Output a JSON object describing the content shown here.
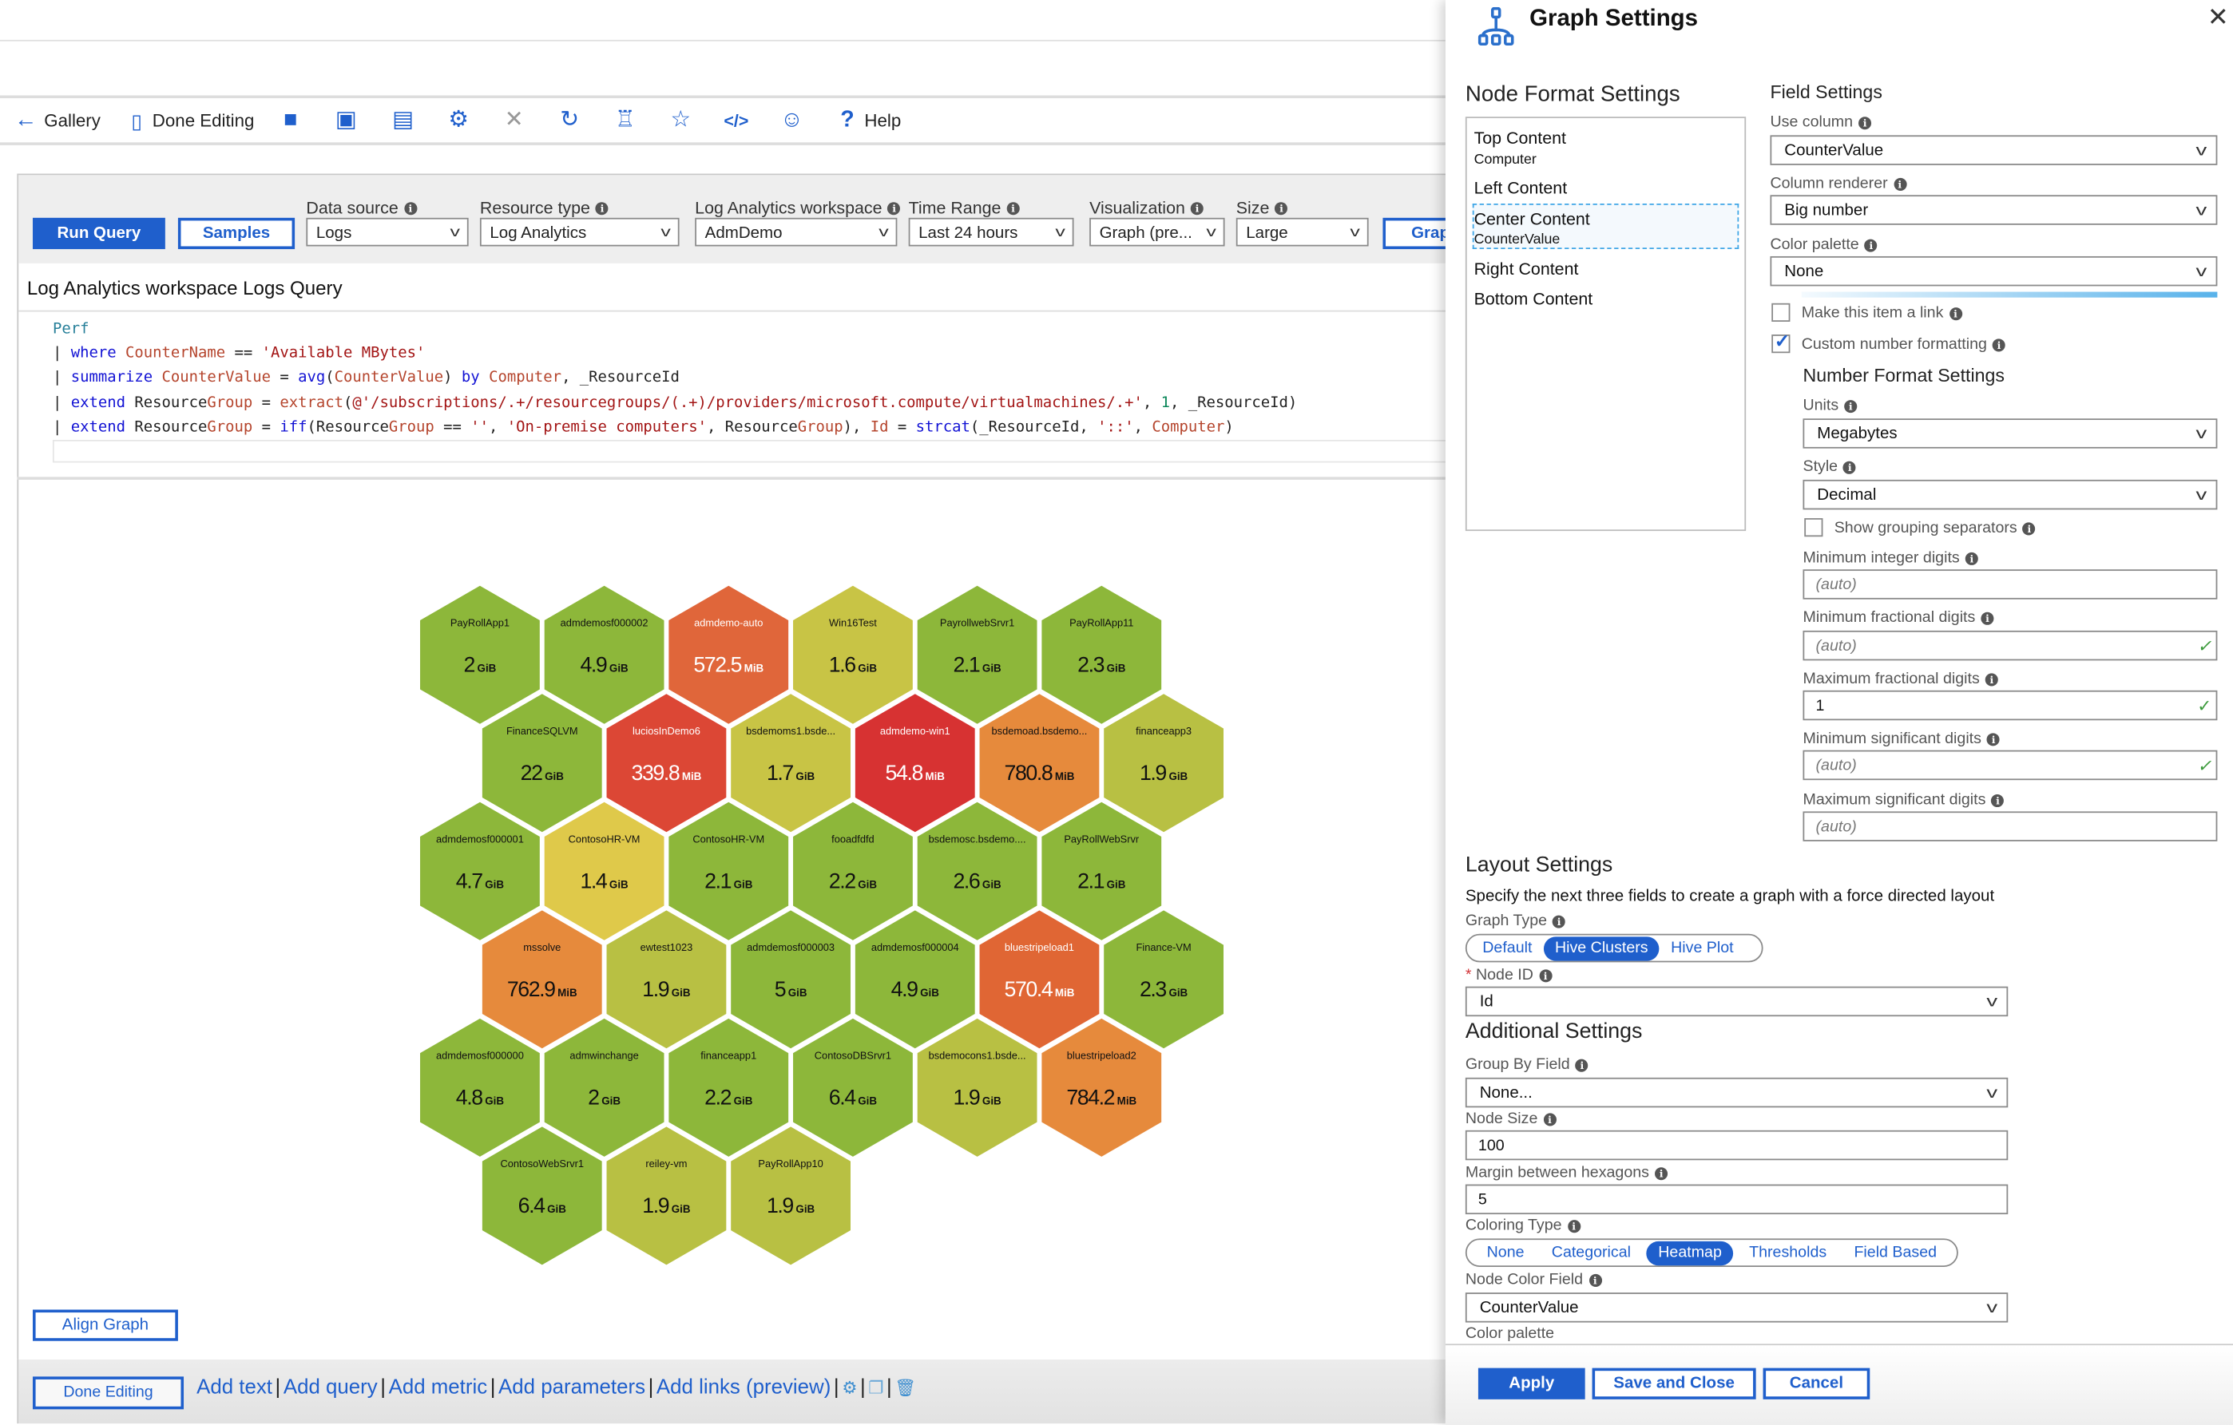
{
  "toolbar": {
    "gallery": "Gallery",
    "done_editing": "Done Editing",
    "help": "Help",
    "icons": [
      "arrow-left-icon",
      "notebook-icon",
      "folder-icon",
      "save-icon",
      "save-as-icon",
      "gear-icon",
      "close-icon",
      "refresh-icon",
      "alert-icon",
      "pin-icon",
      "code-icon",
      "smiley-icon",
      "help-icon"
    ]
  },
  "query": {
    "run_query": "Run Query",
    "samples": "Samples",
    "params": [
      {
        "label": "Data source",
        "value": "Logs"
      },
      {
        "label": "Resource type",
        "value": "Log Analytics"
      },
      {
        "label": "Log Analytics workspace",
        "value": "AdmDemo"
      },
      {
        "label": "Time Range",
        "value": "Last 24 hours"
      },
      {
        "label": "Visualization",
        "value": "Graph (pre..."
      },
      {
        "label": "Size",
        "value": "Large"
      }
    ],
    "graph_button": "Grap",
    "title": "Log Analytics workspace Logs Query",
    "code": [
      [
        {
          "t": "Perf",
          "c": "tbl"
        }
      ],
      [
        {
          "t": "| ",
          "c": "pl"
        },
        {
          "t": "where",
          "c": "kw"
        },
        {
          "t": " ",
          "c": "pl"
        },
        {
          "t": "CounterName",
          "c": "col"
        },
        {
          "t": " == ",
          "c": "pl"
        },
        {
          "t": "'Available MBytes'",
          "c": "str"
        }
      ],
      [
        {
          "t": "| ",
          "c": "pl"
        },
        {
          "t": "summarize",
          "c": "kw"
        },
        {
          "t": " ",
          "c": "pl"
        },
        {
          "t": "CounterValue",
          "c": "col"
        },
        {
          "t": " = ",
          "c": "pl"
        },
        {
          "t": "avg",
          "c": "kw"
        },
        {
          "t": "(",
          "c": "pl"
        },
        {
          "t": "CounterValue",
          "c": "col"
        },
        {
          "t": ") ",
          "c": "pl"
        },
        {
          "t": "by",
          "c": "kw"
        },
        {
          "t": " ",
          "c": "pl"
        },
        {
          "t": "Computer",
          "c": "col"
        },
        {
          "t": ", _ResourceId",
          "c": "pl"
        }
      ],
      [
        {
          "t": "| ",
          "c": "pl"
        },
        {
          "t": "extend",
          "c": "kw"
        },
        {
          "t": " Resource",
          "c": "pl"
        },
        {
          "t": "Group",
          "c": "col"
        },
        {
          "t": " = ",
          "c": "pl"
        },
        {
          "t": "extract",
          "c": "col"
        },
        {
          "t": "(",
          "c": "pl"
        },
        {
          "t": "@'/subscriptions/.+/resourcegroups/(.+)/providers/microsoft.compute/virtualmachines/.+'",
          "c": "str"
        },
        {
          "t": ", ",
          "c": "pl"
        },
        {
          "t": "1",
          "c": "num"
        },
        {
          "t": ", _ResourceId)",
          "c": "pl"
        }
      ],
      [
        {
          "t": "| ",
          "c": "pl"
        },
        {
          "t": "extend",
          "c": "kw"
        },
        {
          "t": " Resource",
          "c": "pl"
        },
        {
          "t": "Group",
          "c": "col"
        },
        {
          "t": " = ",
          "c": "pl"
        },
        {
          "t": "iff",
          "c": "kw"
        },
        {
          "t": "(Resource",
          "c": "pl"
        },
        {
          "t": "Group",
          "c": "col"
        },
        {
          "t": " == ",
          "c": "pl"
        },
        {
          "t": "''",
          "c": "str"
        },
        {
          "t": ", ",
          "c": "pl"
        },
        {
          "t": "'On-premise computers'",
          "c": "str"
        },
        {
          "t": ", Resource",
          "c": "pl"
        },
        {
          "t": "Group",
          "c": "col"
        },
        {
          "t": "), ",
          "c": "pl"
        },
        {
          "t": "Id",
          "c": "col"
        },
        {
          "t": " = ",
          "c": "pl"
        },
        {
          "t": "strcat",
          "c": "kw"
        },
        {
          "t": "(_ResourceId, ",
          "c": "pl"
        },
        {
          "t": "'::'",
          "c": "str"
        },
        {
          "t": ", ",
          "c": "pl"
        },
        {
          "t": "Computer",
          "c": "col"
        },
        {
          "t": ")",
          "c": "pl"
        }
      ]
    ]
  },
  "graph": {
    "nodes": [
      {
        "name": "PayRollApp1",
        "value": "2",
        "unit": "GiB",
        "color": "#8db73a",
        "text": "#111"
      },
      {
        "name": "admdemosf000002",
        "value": "4.9",
        "unit": "GiB",
        "color": "#8db73a",
        "text": "#111"
      },
      {
        "name": "admdemo-auto",
        "value": "572.5",
        "unit": "MiB",
        "color": "#e0663a",
        "text": "#fff"
      },
      {
        "name": "Win16Test",
        "value": "1.6",
        "unit": "GiB",
        "color": "#c8c445",
        "text": "#111"
      },
      {
        "name": "PayrollwebSrvr1",
        "value": "2.1",
        "unit": "GiB",
        "color": "#8db73a",
        "text": "#111"
      },
      {
        "name": "PayRollApp11",
        "value": "2.3",
        "unit": "GiB",
        "color": "#8db73a",
        "text": "#111"
      },
      {
        "name": "FinanceSQLVM",
        "value": "22",
        "unit": "GiB",
        "color": "#8db73a",
        "text": "#111"
      },
      {
        "name": "luciosInDemo6",
        "value": "339.8",
        "unit": "MiB",
        "color": "#dc4735",
        "text": "#fff"
      },
      {
        "name": "bsdemoms1.bsde...",
        "value": "1.7",
        "unit": "GiB",
        "color": "#c8c445",
        "text": "#111"
      },
      {
        "name": "admdemo-win1",
        "value": "54.8",
        "unit": "MiB",
        "color": "#d73232",
        "text": "#fff"
      },
      {
        "name": "bsdemoad.bsdemo...",
        "value": "780.8",
        "unit": "MiB",
        "color": "#e68a3c",
        "text": "#111"
      },
      {
        "name": "financeapp3",
        "value": "1.9",
        "unit": "GiB",
        "color": "#b8c043",
        "text": "#111"
      },
      {
        "name": "admdemosf000001",
        "value": "4.7",
        "unit": "GiB",
        "color": "#8db73a",
        "text": "#111"
      },
      {
        "name": "ContosoHR-VM",
        "value": "1.4",
        "unit": "GiB",
        "color": "#dfc94a",
        "text": "#111"
      },
      {
        "name": "ContosoHR-VM",
        "value": "2.1",
        "unit": "GiB",
        "color": "#8db73a",
        "text": "#111"
      },
      {
        "name": "fooadfdfd",
        "value": "2.2",
        "unit": "GiB",
        "color": "#8db73a",
        "text": "#111"
      },
      {
        "name": "bsdemosc.bsdemo....",
        "value": "2.6",
        "unit": "GiB",
        "color": "#8db73a",
        "text": "#111"
      },
      {
        "name": "PayRollWebSrvr",
        "value": "2.1",
        "unit": "GiB",
        "color": "#8db73a",
        "text": "#111"
      },
      {
        "name": "mssolve",
        "value": "762.9",
        "unit": "MiB",
        "color": "#e68a3c",
        "text": "#111"
      },
      {
        "name": "ewtest1023",
        "value": "1.9",
        "unit": "GiB",
        "color": "#b8c043",
        "text": "#111"
      },
      {
        "name": "admdemosf000003",
        "value": "5",
        "unit": "GiB",
        "color": "#8db73a",
        "text": "#111"
      },
      {
        "name": "admdemosf000004",
        "value": "4.9",
        "unit": "GiB",
        "color": "#8db73a",
        "text": "#111"
      },
      {
        "name": "bluestripeload1",
        "value": "570.4",
        "unit": "MiB",
        "color": "#e06634",
        "text": "#fff"
      },
      {
        "name": "Finance-VM",
        "value": "2.3",
        "unit": "GiB",
        "color": "#8db73a",
        "text": "#111"
      },
      {
        "name": "admdemosf000000",
        "value": "4.8",
        "unit": "GiB",
        "color": "#8db73a",
        "text": "#111"
      },
      {
        "name": "admwinchange",
        "value": "2",
        "unit": "GiB",
        "color": "#8db73a",
        "text": "#111"
      },
      {
        "name": "financeapp1",
        "value": "2.2",
        "unit": "GiB",
        "color": "#8db73a",
        "text": "#111"
      },
      {
        "name": "ContosoDBSrvr1",
        "value": "6.4",
        "unit": "GiB",
        "color": "#8db73a",
        "text": "#111"
      },
      {
        "name": "bsdemocons1.bsde...",
        "value": "1.9",
        "unit": "GiB",
        "color": "#b8c043",
        "text": "#111"
      },
      {
        "name": "bluestripeload2",
        "value": "784.2",
        "unit": "MiB",
        "color": "#e68a3c",
        "text": "#111"
      },
      {
        "name": "ContosoWebSrvr1",
        "value": "6.4",
        "unit": "GiB",
        "color": "#8db73a",
        "text": "#111"
      },
      {
        "name": "reiley-vm",
        "value": "1.9",
        "unit": "GiB",
        "color": "#b8c043",
        "text": "#111"
      },
      {
        "name": "PayRollApp10",
        "value": "1.9",
        "unit": "GiB",
        "color": "#b8c043",
        "text": "#111"
      }
    ],
    "align_graph": "Align Graph"
  },
  "bottom": {
    "done_editing": "Done Editing",
    "links": [
      "Add text",
      "Add query",
      "Add metric",
      "Add parameters",
      "Add links (preview)"
    ],
    "separator": "|"
  },
  "panel": {
    "title": "Graph Settings",
    "node_format": {
      "heading": "Node Format Settings",
      "items": [
        {
          "label": "Top Content",
          "value": "Computer"
        },
        {
          "label": "Left Content",
          "value": ""
        },
        {
          "label": "Center Content",
          "value": "CounterValue"
        },
        {
          "label": "Right Content",
          "value": ""
        },
        {
          "label": "Bottom Content",
          "value": ""
        }
      ]
    },
    "field": {
      "heading": "Field Settings",
      "use_column_label": "Use column",
      "use_column": "CounterValue",
      "renderer_label": "Column renderer",
      "renderer": "Big number",
      "palette_label": "Color palette",
      "palette": "None",
      "make_link": "Make this item a link",
      "make_link_checked": false,
      "custom_format": "Custom number formatting",
      "custom_format_checked": true,
      "nf_heading": "Number Format Settings",
      "units_label": "Units",
      "units": "Megabytes",
      "style_label": "Style",
      "style": "Decimal",
      "grouping": "Show grouping separators",
      "grouping_checked": false,
      "min_int_label": "Minimum integer digits",
      "min_int": "(auto)",
      "min_frac_label": "Minimum fractional digits",
      "min_frac": "(auto)",
      "max_frac_label": "Maximum fractional digits",
      "max_frac": "1",
      "min_sig_label": "Minimum significant digits",
      "min_sig": "(auto)",
      "max_sig_label": "Maximum significant digits",
      "max_sig": "(auto)"
    },
    "layout": {
      "heading": "Layout Settings",
      "desc": "Specify the next three fields to create a graph with a force directed layout",
      "graph_type_label": "Graph Type",
      "graph_types": [
        "Default",
        "Hive Clusters",
        "Hive Plot"
      ],
      "graph_type_selected": "Hive Clusters",
      "node_id_required": "*",
      "node_id_label": "Node ID",
      "node_id": "Id"
    },
    "additional": {
      "heading": "Additional Settings",
      "group_label": "Group By Field",
      "group": "None...",
      "size_label": "Node Size",
      "size": "100",
      "margin_label": "Margin between hexagons",
      "margin": "5",
      "coloring_label": "Coloring Type",
      "coloring_types": [
        "None",
        "Categorical",
        "Heatmap",
        "Thresholds",
        "Field Based"
      ],
      "coloring_selected": "Heatmap",
      "color_field_label": "Node Color Field",
      "color_field": "CounterValue",
      "color_palette_label": "Color palette"
    },
    "footer": {
      "apply": "Apply",
      "save_close": "Save and Close",
      "cancel": "Cancel"
    }
  }
}
